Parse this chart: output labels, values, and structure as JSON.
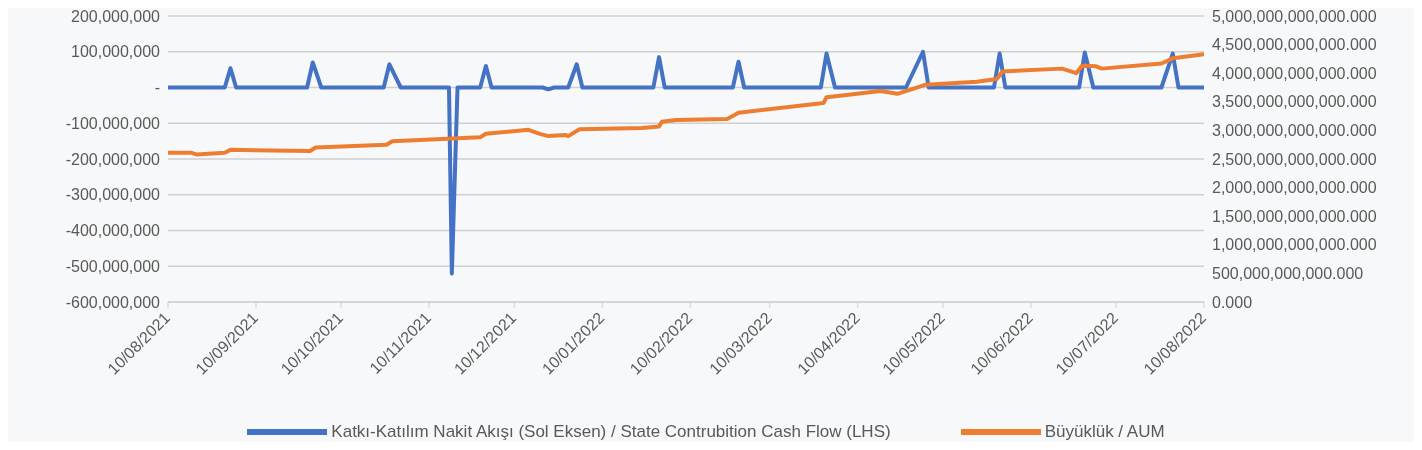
{
  "chart_data": {
    "type": "line",
    "xlim": [
      "2021-08-10",
      "2022-08-10"
    ],
    "xticks": [
      {
        "value": "2021-08-10",
        "label": "10/08/2021"
      },
      {
        "value": "2021-09-10",
        "label": "10/09/2021"
      },
      {
        "value": "2021-10-10",
        "label": "10/10/2021"
      },
      {
        "value": "2021-11-10",
        "label": "10/11/2021"
      },
      {
        "value": "2021-12-10",
        "label": "10/12/2021"
      },
      {
        "value": "2022-01-10",
        "label": "10/01/2022"
      },
      {
        "value": "2022-02-10",
        "label": "10/02/2022"
      },
      {
        "value": "2022-03-10",
        "label": "10/03/2022"
      },
      {
        "value": "2022-04-10",
        "label": "10/04/2022"
      },
      {
        "value": "2022-05-10",
        "label": "10/05/2022"
      },
      {
        "value": "2022-06-10",
        "label": "10/06/2022"
      },
      {
        "value": "2022-07-10",
        "label": "10/07/2022"
      },
      {
        "value": "2022-08-10",
        "label": "10/08/2022"
      }
    ],
    "ylim": [
      -600000000,
      200000000
    ],
    "yticks": [
      {
        "value": -600000000,
        "label": "-600,000,000"
      },
      {
        "value": -500000000,
        "label": "-500,000,000"
      },
      {
        "value": -400000000,
        "label": "-400,000,000"
      },
      {
        "value": -300000000,
        "label": "-300,000,000"
      },
      {
        "value": -200000000,
        "label": "-200,000,000"
      },
      {
        "value": -100000000,
        "label": "-100,000,000"
      },
      {
        "value": 0,
        "label": "-"
      },
      {
        "value": 100000000,
        "label": "100,000,000"
      },
      {
        "value": 200000000,
        "label": "200,000,000"
      }
    ],
    "y2lim": [
      0,
      5000000000000
    ],
    "y2ticks": [
      {
        "value": 0,
        "label": "0.000"
      },
      {
        "value": 500000000000,
        "label": "500,000,000,000.000"
      },
      {
        "value": 1000000000000,
        "label": "1,000,000,000,000.000"
      },
      {
        "value": 1500000000000,
        "label": "1,500,000,000,000.000"
      },
      {
        "value": 2000000000000,
        "label": "2,000,000,000,000.000"
      },
      {
        "value": 2500000000000,
        "label": "2,500,000,000,000.000"
      },
      {
        "value": 3000000000000,
        "label": "3,000,000,000,000.000"
      },
      {
        "value": 3500000000000,
        "label": "3,500,000,000,000.000"
      },
      {
        "value": 4000000000000,
        "label": "4,000,000,000,000.000"
      },
      {
        "value": 4500000000000,
        "label": "4,500,000,000,000.000"
      },
      {
        "value": 5000000000000,
        "label": "5,000,000,000,000.000"
      }
    ],
    "grid": "y",
    "legend": "bottom",
    "marker": "none",
    "line_style": "solid",
    "series": [
      {
        "name": "Katkı-Katılım Nakit Akışı (Sol Eksen) / State Contrubition Cash Flow (LHS)",
        "color": "#4472c4",
        "x": [
          "2021-08-10",
          "2021-08-30",
          "2021-09-01",
          "2021-09-03",
          "2021-09-28",
          "2021-09-30",
          "2021-10-03",
          "2021-10-25",
          "2021-10-27",
          "2021-10-31",
          "2021-11-17",
          "2021-11-18",
          "2021-11-20",
          "2021-11-28",
          "2021-11-30",
          "2021-12-02",
          "2021-12-20",
          "2021-12-22",
          "2021-12-24",
          "2021-12-29",
          "2022-01-01",
          "2022-01-03",
          "2022-01-28",
          "2022-01-30",
          "2022-02-01",
          "2022-02-25",
          "2022-02-27",
          "2022-03-01",
          "2022-03-28",
          "2022-03-30",
          "2022-04-02",
          "2022-04-27",
          "2022-05-03",
          "2022-05-05",
          "2022-05-28",
          "2022-05-30",
          "2022-06-01",
          "2022-06-27",
          "2022-06-29",
          "2022-07-02",
          "2022-07-26",
          "2022-07-30",
          "2022-08-01",
          "2022-08-10"
        ],
        "values": [
          0,
          0,
          54000000,
          0,
          0,
          70000000,
          0,
          0,
          65000000,
          0,
          0,
          -520000000,
          0,
          0,
          60000000,
          0,
          0,
          -5000000,
          0,
          0,
          65000000,
          0,
          0,
          85000000,
          0,
          0,
          72000000,
          0,
          0,
          95000000,
          0,
          0,
          100000000,
          0,
          0,
          95000000,
          0,
          0,
          98000000,
          0,
          0,
          95000000,
          0,
          0
        ]
      },
      {
        "name": "Büyüklük / AUM",
        "color": "#ed7d31",
        "axis": "y2",
        "x": [
          "2021-08-10",
          "2021-08-18",
          "2021-08-20",
          "2021-08-30",
          "2021-09-01",
          "2021-09-29",
          "2021-10-01",
          "2021-10-26",
          "2021-10-28",
          "2021-11-28",
          "2021-11-30",
          "2021-12-15",
          "2021-12-19",
          "2021-12-22",
          "2021-12-28",
          "2021-12-29",
          "2022-01-02",
          "2022-01-24",
          "2022-01-30",
          "2022-01-31",
          "2022-02-05",
          "2022-02-23",
          "2022-02-27",
          "2022-03-29",
          "2022-03-30",
          "2022-04-06",
          "2022-04-18",
          "2022-04-24",
          "2022-05-04",
          "2022-05-22",
          "2022-05-29",
          "2022-05-31",
          "2022-06-21",
          "2022-06-26",
          "2022-06-28",
          "2022-07-03",
          "2022-07-05",
          "2022-07-26",
          "2022-07-30",
          "2022-08-10"
        ],
        "values": [
          2610000000000,
          2610000000000,
          2580000000000,
          2610000000000,
          2660000000000,
          2640000000000,
          2700000000000,
          2750000000000,
          2810000000000,
          2880000000000,
          2940000000000,
          3010000000000,
          2940000000000,
          2900000000000,
          2920000000000,
          2900000000000,
          3020000000000,
          3040000000000,
          3070000000000,
          3150000000000,
          3180000000000,
          3200000000000,
          3310000000000,
          3480000000000,
          3580000000000,
          3620000000000,
          3690000000000,
          3640000000000,
          3800000000000,
          3850000000000,
          3900000000000,
          4030000000000,
          4080000000000,
          4000000000000,
          4130000000000,
          4120000000000,
          4080000000000,
          4170000000000,
          4260000000000,
          4330000000000
        ]
      }
    ]
  }
}
